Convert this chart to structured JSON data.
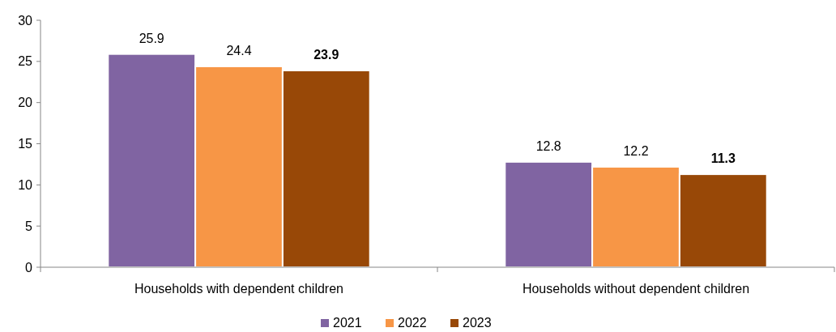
{
  "chart_data": {
    "type": "bar",
    "categories": [
      "Households with dependent children",
      "Households without dependent children"
    ],
    "series": [
      {
        "name": "2021",
        "color": "#8064a2",
        "values": [
          25.9,
          12.8
        ]
      },
      {
        "name": "2022",
        "color": "#f79646",
        "values": [
          24.4,
          12.2
        ]
      },
      {
        "name": "2023",
        "color": "#984807",
        "values": [
          23.9,
          11.3
        ]
      }
    ],
    "ylim": [
      0,
      30
    ],
    "yticks": [
      0,
      5,
      10,
      15,
      20,
      25,
      30
    ],
    "data_labels": true,
    "legend": "bottom",
    "grid": false
  }
}
